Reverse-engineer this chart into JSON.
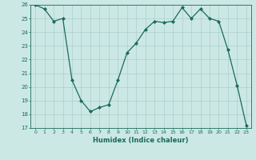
{
  "x": [
    0,
    1,
    2,
    3,
    4,
    5,
    6,
    7,
    8,
    9,
    10,
    11,
    12,
    13,
    14,
    15,
    16,
    17,
    18,
    19,
    20,
    21,
    22,
    23
  ],
  "y": [
    26.0,
    25.7,
    24.8,
    25.0,
    20.5,
    19.0,
    18.2,
    18.5,
    18.7,
    20.5,
    22.5,
    23.2,
    24.2,
    24.8,
    24.7,
    24.8,
    25.8,
    25.0,
    25.7,
    25.0,
    24.8,
    22.7,
    20.1,
    17.2
  ],
  "xlabel": "Humidex (Indice chaleur)",
  "ylim": [
    17,
    26
  ],
  "xlim": [
    -0.5,
    23.5
  ],
  "yticks": [
    17,
    18,
    19,
    20,
    21,
    22,
    23,
    24,
    25,
    26
  ],
  "xticks": [
    0,
    1,
    2,
    3,
    4,
    5,
    6,
    7,
    8,
    9,
    10,
    11,
    12,
    13,
    14,
    15,
    16,
    17,
    18,
    19,
    20,
    21,
    22,
    23
  ],
  "line_color": "#1a6b5a",
  "marker": "D",
  "marker_size": 2.0,
  "bg_color": "#cce8e4",
  "grid_color": "#aacfcb",
  "tick_color": "#1a6b5a",
  "label_color": "#1a6b5a",
  "spine_color": "#1a6b5a"
}
